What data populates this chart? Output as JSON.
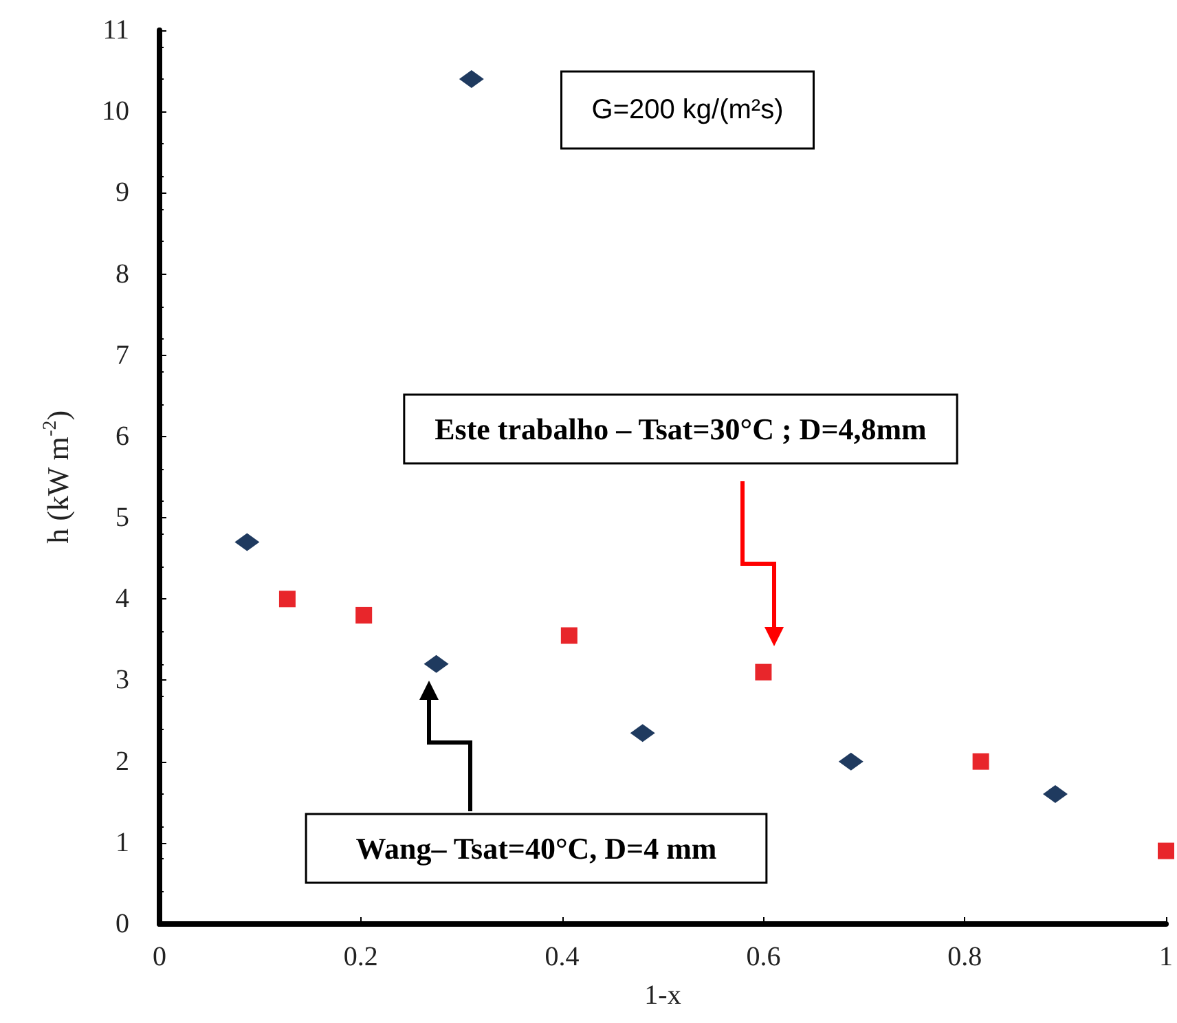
{
  "chart_data": {
    "type": "scatter",
    "xlabel": "1-x",
    "ylabel": "h (kW m$^{-2}$)",
    "xlim": [
      0,
      1
    ],
    "xticks": [
      0,
      0.2,
      0.4,
      0.6,
      0.8,
      1
    ],
    "ylim": [
      0,
      11
    ],
    "yticks": [
      0,
      1,
      2,
      3,
      4,
      5,
      6,
      7,
      8,
      9,
      10,
      11
    ],
    "grid": false,
    "series": [
      {
        "color": "#1f3a5f",
        "marker": "diamond",
        "x": [
          0.087,
          0.31,
          0.275,
          0.48,
          0.687,
          0.89
        ],
        "values": [
          4.7,
          10.4,
          3.2,
          2.35,
          2.0,
          1.6
        ]
      },
      {
        "color": "#e8262b",
        "marker": "square",
        "x": [
          0.127,
          0.203,
          0.407,
          0.6,
          0.816,
          1.0
        ],
        "values": [
          4.0,
          3.8,
          3.55,
          3.1,
          2.0,
          0.9
        ]
      }
    ],
    "annotations": [
      "G=200 kg/(m²s)",
      "Este trabalho – Tsat=30°C ; D=4,8mm",
      "Wang– Tsat=40°C, D=4 mm"
    ]
  }
}
